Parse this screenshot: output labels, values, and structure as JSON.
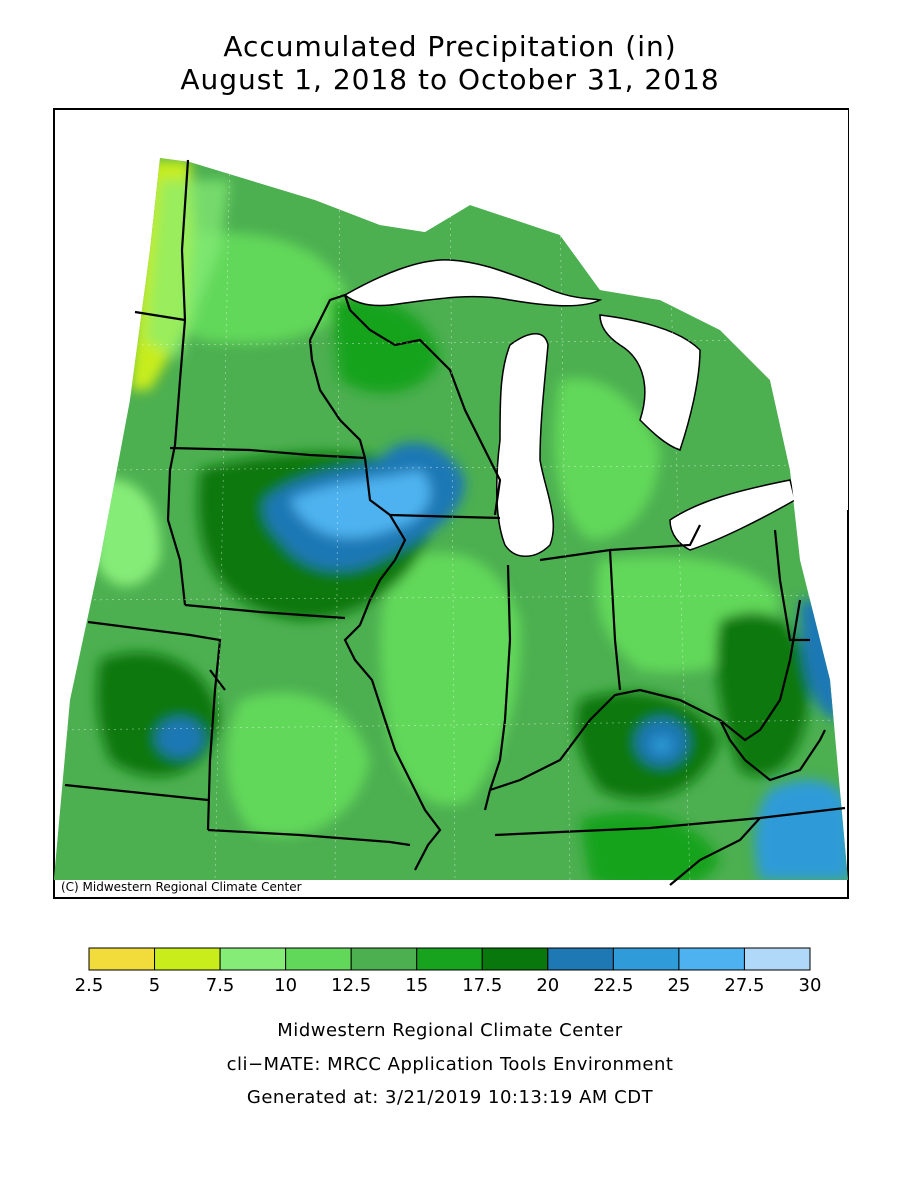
{
  "title": {
    "line1": "Accumulated Precipitation (in)",
    "line2": "August 1, 2018 to October 31, 2018"
  },
  "map": {
    "copyright": "(C) Midwestern Regional Climate Center",
    "background_color": "#4caf50",
    "water_color": "#ffffff",
    "boundary_color": "#000000"
  },
  "legend": {
    "ticks": [
      "2.5",
      "5",
      "7.5",
      "10",
      "12.5",
      "15",
      "17.5",
      "20",
      "22.5",
      "25",
      "27.5",
      "30"
    ],
    "colors": [
      "#f2dc3c",
      "#c8ed1a",
      "#86ec78",
      "#62d85a",
      "#4caf50",
      "#17a31e",
      "#08780c",
      "#1e78b4",
      "#2f9bd8",
      "#4db2ef",
      "#b0d8f8"
    ]
  },
  "credits": {
    "line1": "Midwestern Regional Climate Center",
    "line2": "cli−MATE: MRCC Application Tools Environment",
    "line3": "Generated at: 3/21/2019 10:13:19 AM CDT"
  }
}
